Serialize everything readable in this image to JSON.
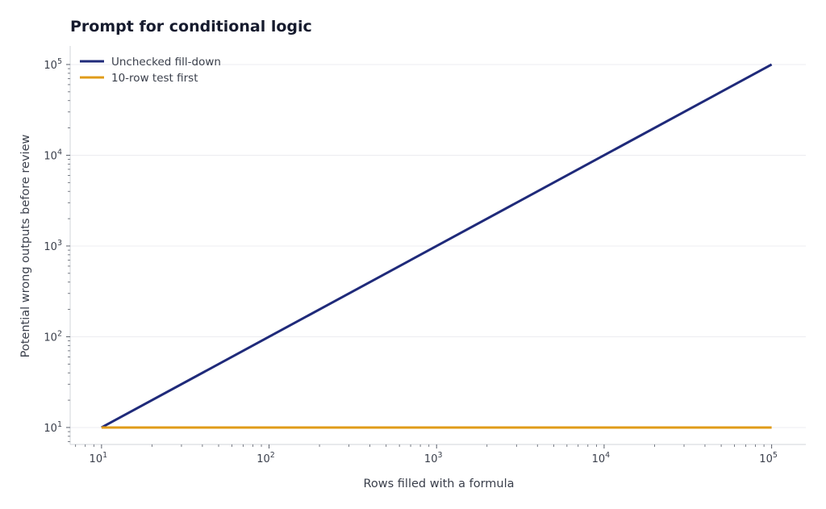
{
  "chart_data": {
    "type": "line",
    "title": "Prompt for conditional logic",
    "xlabel": "Rows filled with a formula",
    "ylabel": "Potential wrong outputs before review",
    "xscale": "log",
    "yscale": "log",
    "xlim": [
      6.5,
      160000
    ],
    "ylim": [
      6.5,
      160000
    ],
    "xticks": [
      10,
      100,
      1000,
      10000,
      100000
    ],
    "yticks": [
      10,
      100,
      1000,
      10000,
      100000
    ],
    "grid": "horizontal",
    "legend": "top-left",
    "series": [
      {
        "name": "Unchecked fill-down",
        "color": "#1f2a7a",
        "x": [
          10,
          100,
          1000,
          10000,
          100000
        ],
        "y": [
          10,
          100,
          1000,
          10000,
          100000
        ]
      },
      {
        "name": "10-row test first",
        "color": "#e09c1a",
        "x": [
          10,
          100,
          1000,
          10000,
          100000
        ],
        "y": [
          10,
          10,
          10,
          10,
          10
        ]
      }
    ]
  }
}
